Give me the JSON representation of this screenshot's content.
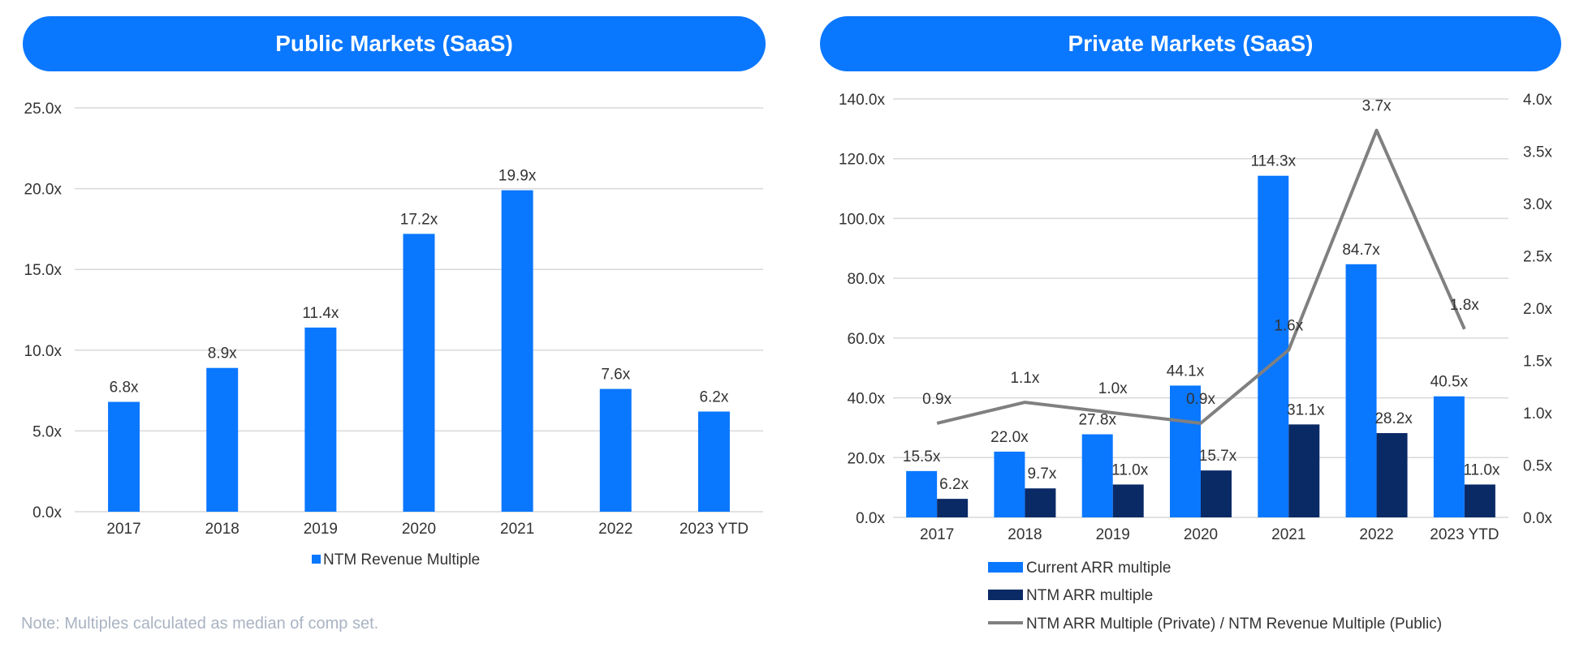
{
  "charts": {
    "public": {
      "title": "Public Markets (SaaS)",
      "legend_label": "NTM Revenue Multiple"
    },
    "private": {
      "title": "Private Markets (SaaS)",
      "legend_labels": [
        "Current ARR multiple",
        "NTM ARR multiple",
        "NTM ARR Multiple (Private) / NTM Revenue Multiple (Public)"
      ]
    }
  },
  "note": "Note: Multiples calculated as median of comp set.",
  "colors": {
    "accent": "#0a77ff",
    "navy": "#0a2a66",
    "line": "#808080",
    "grid": "#d9d9d9"
  },
  "chart_data": [
    {
      "type": "bar",
      "title": "Public Markets (SaaS)",
      "categories": [
        "2017",
        "2018",
        "2019",
        "2020",
        "2021",
        "2022",
        "2023 YTD"
      ],
      "series": [
        {
          "name": "NTM Revenue Multiple",
          "values": [
            6.8,
            8.9,
            11.4,
            17.2,
            19.9,
            7.6,
            6.2
          ],
          "labels": [
            "6.8x",
            "8.9x",
            "11.4x",
            "17.2x",
            "19.9x",
            "7.6x",
            "6.2x"
          ]
        }
      ],
      "ylim": [
        0,
        25
      ],
      "yticks": [
        "0.0x",
        "5.0x",
        "10.0x",
        "15.0x",
        "20.0x",
        "25.0x"
      ],
      "grid": true,
      "legend": "bottom"
    },
    {
      "type": "bar",
      "title": "Private Markets (SaaS)",
      "categories": [
        "2017",
        "2018",
        "2019",
        "2020",
        "2021",
        "2022",
        "2023 YTD"
      ],
      "series": [
        {
          "name": "Current ARR multiple",
          "values": [
            15.5,
            22.0,
            27.8,
            44.1,
            114.3,
            84.7,
            40.5
          ],
          "labels": [
            "15.5x",
            "22.0x",
            "27.8x",
            "44.1x",
            "114.3x",
            "84.7x",
            "40.5x"
          ]
        },
        {
          "name": "NTM ARR multiple",
          "values": [
            6.2,
            9.7,
            11.0,
            15.7,
            31.1,
            28.2,
            11.0
          ],
          "labels": [
            "6.2x",
            "9.7x",
            "11.0x",
            "15.7x",
            "31.1x",
            "28.2x",
            "11.0x"
          ]
        },
        {
          "name": "NTM ARR Multiple (Private) / NTM Revenue Multiple (Public)",
          "type": "line",
          "axis": "secondary",
          "values": [
            0.9,
            1.1,
            1.0,
            0.9,
            1.6,
            3.7,
            1.8
          ],
          "labels": [
            "0.9x",
            "1.1x",
            "1.0x",
            "0.9x",
            "1.6x",
            "3.7x",
            "1.8x"
          ]
        }
      ],
      "ylim": [
        0,
        140
      ],
      "yticks": [
        "0.0x",
        "20.0x",
        "40.0x",
        "60.0x",
        "80.0x",
        "100.0x",
        "120.0x",
        "140.0x"
      ],
      "y2lim": [
        0,
        4
      ],
      "y2ticks": [
        "0.0x",
        "0.5x",
        "1.0x",
        "1.5x",
        "2.0x",
        "2.5x",
        "3.0x",
        "3.5x",
        "4.0x"
      ],
      "grid": true,
      "legend": "bottom"
    }
  ]
}
